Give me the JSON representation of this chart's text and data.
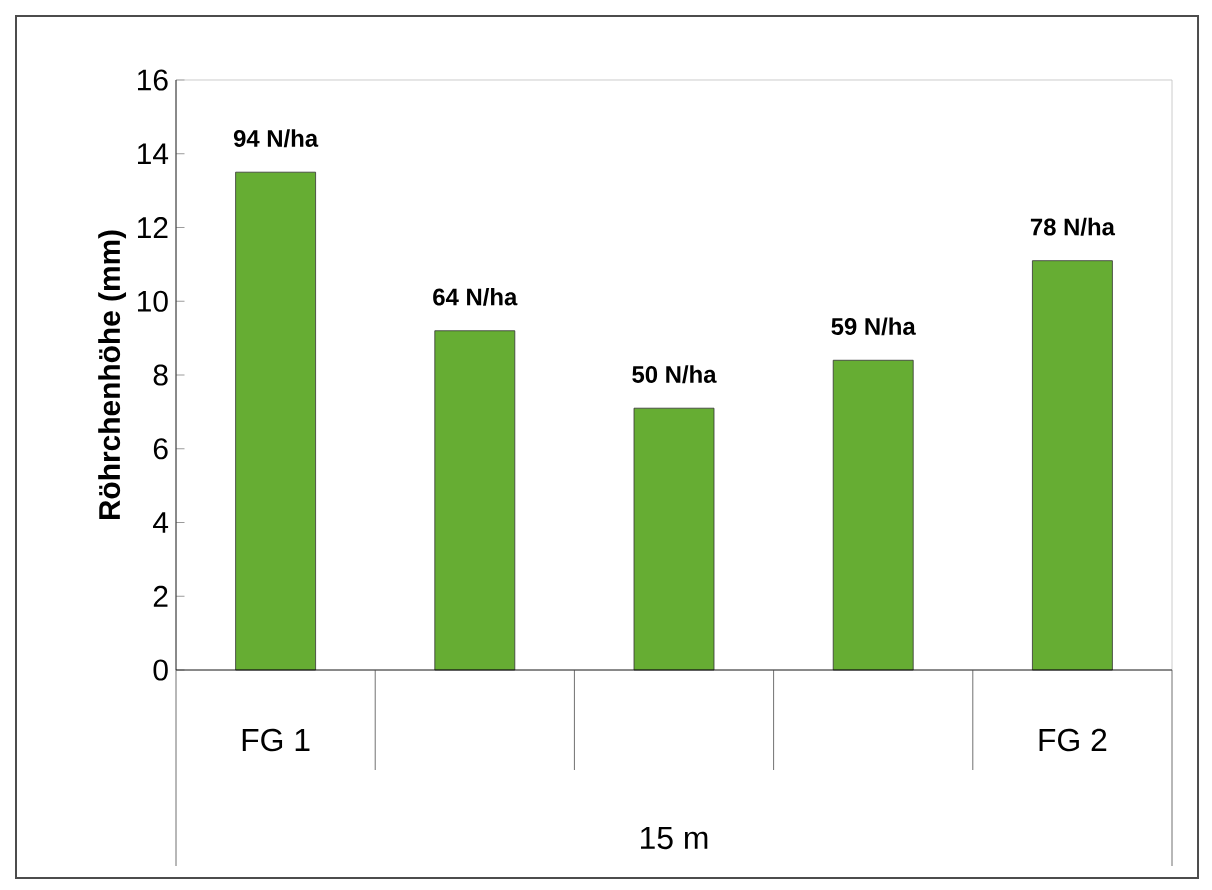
{
  "chart_data": {
    "type": "bar",
    "ylabel": "Röhrchenhöhe (mm)",
    "xlabel": "15 m",
    "categories": [
      "FG 1",
      null,
      null,
      null,
      "FG 2"
    ],
    "values": [
      13.5,
      9.2,
      7.1,
      8.4,
      11.1
    ],
    "annotations": [
      {
        "text": "94 N/ha",
        "x": "FG 1",
        "y": 13.5
      },
      {
        "text": "64 N/ha",
        "y": 9.2
      },
      {
        "text": "50 N/ha",
        "y": 7.1
      },
      {
        "text": "59 N/ha",
        "y": 8.4
      },
      {
        "text": "78 N/ha",
        "x": "FG 2",
        "y": 11.1
      }
    ],
    "color": "#66ad33",
    "ylim": [
      0,
      16
    ],
    "yticks": [
      0,
      2,
      4,
      6,
      8,
      10,
      12,
      14,
      16
    ],
    "grid": false
  }
}
